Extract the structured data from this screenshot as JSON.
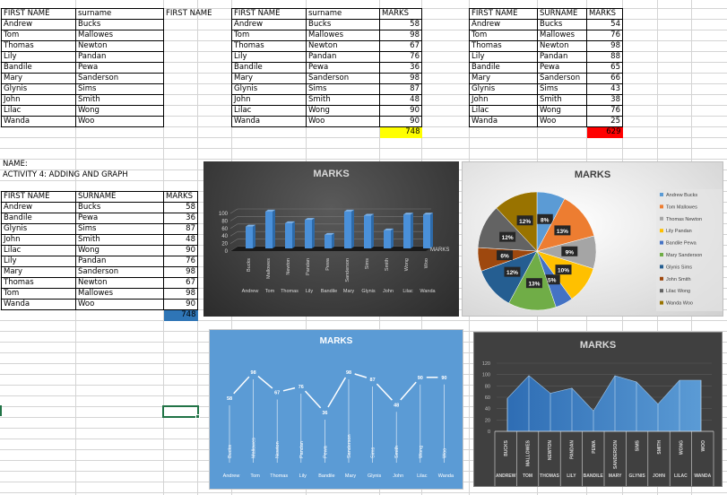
{
  "sheet": {
    "selected_cell_highlight": "#217346"
  },
  "table1": {
    "headers": [
      "FIRST NAME",
      "surname"
    ],
    "rows": [
      [
        "Andrew",
        "Bucks"
      ],
      [
        "Tom",
        "Mallowes"
      ],
      [
        "Thomas",
        "Newton"
      ],
      [
        "Lily",
        "Pandan"
      ],
      [
        "Bandile",
        "Pewa"
      ],
      [
        "Mary",
        "Sanderson"
      ],
      [
        "Glynis",
        "Sims"
      ],
      [
        "John",
        "Smith"
      ],
      [
        "Lilac",
        "Wong"
      ],
      [
        "Wanda",
        "Woo"
      ]
    ],
    "extra_header": "FIRST NAME"
  },
  "table2": {
    "headers": [
      "FIRST NAME",
      "surname",
      "MARKS"
    ],
    "rows": [
      [
        "Andrew",
        "Bucks",
        "58"
      ],
      [
        "Tom",
        "Mallowes",
        "98"
      ],
      [
        "Thomas",
        "Newton",
        "67"
      ],
      [
        "Lily",
        "Pandan",
        "76"
      ],
      [
        "Bandile",
        "Pewa",
        "36"
      ],
      [
        "Mary",
        "Sanderson",
        "98"
      ],
      [
        "Glynis",
        "Sims",
        "87"
      ],
      [
        "John",
        "Smith",
        "48"
      ],
      [
        "Lilac",
        "Wong",
        "90"
      ],
      [
        "Wanda",
        "Woo",
        "90"
      ]
    ],
    "total": "748",
    "total_color": "#ffff00"
  },
  "table3": {
    "headers": [
      "FIRST NAME",
      "SURNAME",
      "MARKS"
    ],
    "rows": [
      [
        "Andrew",
        "Bucks",
        "54"
      ],
      [
        "Tom",
        "Mallowes",
        "76"
      ],
      [
        "Thomas",
        "Newton",
        "98"
      ],
      [
        "Lily",
        "Pandan",
        "88"
      ],
      [
        "Bandile",
        "Pewa",
        "65"
      ],
      [
        "Mary",
        "Sanderson",
        "66"
      ],
      [
        "Glynis",
        "Sims",
        "43"
      ],
      [
        "John",
        "Smith",
        "38"
      ],
      [
        "Lilac",
        "Wong",
        "76"
      ],
      [
        "Wanda",
        "Woo",
        "25"
      ]
    ],
    "total": "629",
    "total_color": "#ff0000"
  },
  "name_label": "NAME:",
  "activity_title": "ACTIVITY 4: ADDING AND GRAPH",
  "table4": {
    "headers": [
      "FIRST NAME",
      "SURNAME",
      "MARKS"
    ],
    "rows": [
      [
        "Andrew",
        "Bucks",
        "58"
      ],
      [
        "Bandile",
        "Pewa",
        "36"
      ],
      [
        "Glynis",
        "Sims",
        "87"
      ],
      [
        "John",
        "Smith",
        "48"
      ],
      [
        "Lilac",
        "Wong",
        "90"
      ],
      [
        "Lily",
        "Pandan",
        "76"
      ],
      [
        "Mary",
        "Sanderson",
        "98"
      ],
      [
        "Thomas",
        "Newton",
        "67"
      ],
      [
        "Tom",
        "Mallowes",
        "98"
      ],
      [
        "Wanda",
        "Woo",
        "90"
      ]
    ],
    "total": "748",
    "total_color": "#2e75b6"
  },
  "chart_data": [
    {
      "type": "bar",
      "title": "MARKS",
      "categories": [
        "Andrew Bucks",
        "Tom Mallowes",
        "Thomas Newton",
        "Lily Pandan",
        "Bandile Pewa",
        "Mary Sanderson",
        "Glynis Sims",
        "John Smith",
        "Lilac Wong",
        "Wanda Woo"
      ],
      "first_names": [
        "Andrew",
        "Tom",
        "Thomas",
        "Lily",
        "Bandile",
        "Mary",
        "Glynis",
        "John",
        "Lilac",
        "Wanda"
      ],
      "surnames": [
        "Bucks",
        "Mallowes",
        "Newton",
        "Pandan",
        "Pewa",
        "Sanderson",
        "Sims",
        "Smith",
        "Wong",
        "Woo"
      ],
      "series": [
        {
          "name": "MARKS",
          "values": [
            58,
            98,
            67,
            76,
            36,
            98,
            87,
            48,
            90,
            90
          ]
        }
      ],
      "yticks": [
        0,
        20,
        40,
        60,
        80,
        100
      ],
      "ylim": [
        0,
        100
      ],
      "legend": "MARKS",
      "style": "3d-column dark"
    },
    {
      "type": "pie",
      "title": "MARKS",
      "labels": [
        "Andrew Bucks",
        "Tom Mallowes",
        "Thomas Newton",
        "Lily Pandan",
        "Bandile Pewa",
        "Mary Sanderson",
        "Glynis Sims",
        "John Smith",
        "Lilac Wong",
        "Wanda Woo"
      ],
      "values": [
        58,
        98,
        67,
        76,
        36,
        98,
        87,
        48,
        90,
        90
      ],
      "percent_labels": [
        "8%",
        "13%",
        "9%",
        "10%",
        "5%",
        "13%",
        "12%",
        "6%",
        "12%",
        "12%"
      ],
      "colors": [
        "#5b9bd5",
        "#ed7d31",
        "#a5a5a5",
        "#ffc000",
        "#4472c4",
        "#70ad47",
        "#255e91",
        "#9e480e",
        "#636363",
        "#997300"
      ],
      "legend_position": "right"
    },
    {
      "type": "line",
      "title": "MARKS",
      "first_names": [
        "Andrew",
        "Tom",
        "Thomas",
        "Lily",
        "Bandile",
        "Mary",
        "Glynis",
        "John",
        "Lilac",
        "Wanda"
      ],
      "surnames": [
        "Bucks",
        "Mallowes",
        "Newton",
        "Pandan",
        "Pewa",
        "Sanderson",
        "Sims",
        "Smith",
        "Wong",
        "Woo"
      ],
      "series": [
        {
          "name": "MARKS",
          "values": [
            58,
            98,
            67,
            76,
            36,
            98,
            87,
            48,
            90,
            90
          ]
        }
      ],
      "data_labels": true,
      "background": "#5b9bd5"
    },
    {
      "type": "area",
      "title": "MARKS",
      "first_names": [
        "ANDREW",
        "TOM",
        "THOMAS",
        "LILY",
        "BANDILE",
        "MARY",
        "GLYNIS",
        "JOHN",
        "LILAC",
        "WANDA"
      ],
      "surnames": [
        "BUCKS",
        "MALLOWES",
        "NEWTON",
        "PANDAN",
        "PEWA",
        "SANDERSON",
        "SIMS",
        "SMITH",
        "WONG",
        "WOO"
      ],
      "series": [
        {
          "name": "MARKS",
          "values": [
            58,
            98,
            67,
            76,
            36,
            98,
            87,
            48,
            90,
            90
          ]
        }
      ],
      "yticks": [
        0,
        20,
        40,
        60,
        80,
        100,
        120
      ],
      "ylim": [
        0,
        120
      ],
      "grid": true,
      "background": "#404040"
    }
  ]
}
